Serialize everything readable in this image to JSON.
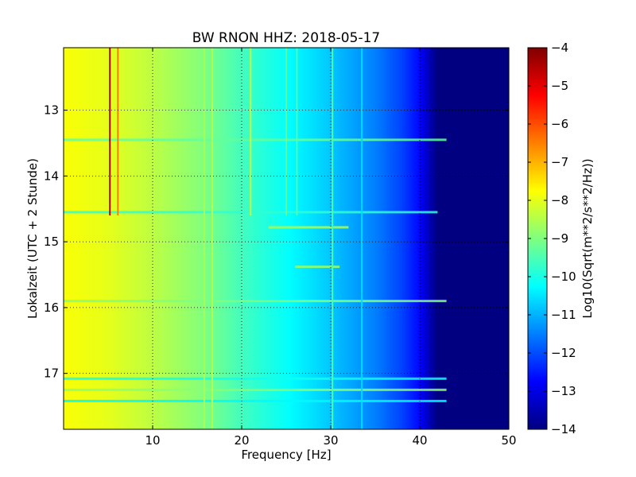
{
  "chart_data": {
    "type": "heatmap",
    "title": "BW RNON HHZ: 2018-05-17",
    "xlabel": "Frequency [Hz]",
    "ylabel": "Lokalzeit (UTC + 2 Stunde)",
    "xlim": [
      0,
      50
    ],
    "ylim": [
      12.05,
      17.85
    ],
    "y_inverted": true,
    "x_ticks": [
      10,
      20,
      30,
      40,
      50
    ],
    "y_ticks": [
      13,
      14,
      15,
      16,
      17
    ],
    "grid": true,
    "colormap": "jet",
    "colorbar": {
      "label": "Log10(Sqrt(m**2/s**2/Hz))",
      "min": -14,
      "max": -4,
      "ticks": [
        -4,
        -5,
        -6,
        -7,
        -8,
        -9,
        -10,
        -11,
        -12,
        -13,
        -14
      ]
    },
    "spectral_profile": {
      "frequency_hz": [
        0,
        5,
        10,
        15,
        20,
        25,
        30,
        35,
        38,
        40,
        41,
        42,
        45,
        50
      ],
      "log10_amplitude": [
        -7.8,
        -8.0,
        -8.4,
        -8.9,
        -9.6,
        -10.2,
        -10.8,
        -11.5,
        -12.1,
        -12.7,
        -13.4,
        -14,
        -14,
        -14
      ]
    },
    "narrowband_lines": [
      {
        "frequency_hz": 5.2,
        "hour_start": 12.05,
        "hour_end": 14.6,
        "log10_amplitude": -4.6
      },
      {
        "frequency_hz": 6.1,
        "hour_start": 12.05,
        "hour_end": 14.6,
        "log10_amplitude": -6.5
      },
      {
        "frequency_hz": 15.8,
        "hour_start": 12.05,
        "hour_end": 17.85,
        "log10_amplitude": -8.6
      },
      {
        "frequency_hz": 16.7,
        "hour_start": 12.05,
        "hour_end": 17.85,
        "log10_amplitude": -8.5
      },
      {
        "frequency_hz": 21.0,
        "hour_start": 12.05,
        "hour_end": 14.6,
        "log10_amplitude": -8.3
      },
      {
        "frequency_hz": 25.0,
        "hour_start": 12.05,
        "hour_end": 14.6,
        "log10_amplitude": -9.3
      },
      {
        "frequency_hz": 26.2,
        "hour_start": 12.05,
        "hour_end": 14.6,
        "log10_amplitude": -9.5
      },
      {
        "frequency_hz": 30.2,
        "hour_start": 12.05,
        "hour_end": 17.85,
        "log10_amplitude": -9.6
      },
      {
        "frequency_hz": 33.5,
        "hour_start": 12.05,
        "hour_end": 17.85,
        "log10_amplitude": -10.6
      }
    ],
    "broadband_events": [
      {
        "hour": 13.45,
        "freq_start_hz": 0,
        "freq_end_hz": 43,
        "log10_amplitude": -9.3
      },
      {
        "hour": 14.55,
        "freq_start_hz": 0,
        "freq_end_hz": 42,
        "log10_amplitude": -9.8
      },
      {
        "hour": 14.78,
        "freq_start_hz": 23,
        "freq_end_hz": 32,
        "log10_amplitude": -8.6
      },
      {
        "hour": 15.38,
        "freq_start_hz": 26,
        "freq_end_hz": 31,
        "log10_amplitude": -8.8
      },
      {
        "hour": 15.9,
        "freq_start_hz": 0,
        "freq_end_hz": 43,
        "log10_amplitude": -9.0
      },
      {
        "hour": 17.08,
        "freq_start_hz": 0,
        "freq_end_hz": 43,
        "log10_amplitude": -10.1
      },
      {
        "hour": 17.25,
        "freq_start_hz": 0,
        "freq_end_hz": 43,
        "log10_amplitude": -8.9
      },
      {
        "hour": 17.42,
        "freq_start_hz": 0,
        "freq_end_hz": 43,
        "log10_amplitude": -10.3
      }
    ]
  }
}
